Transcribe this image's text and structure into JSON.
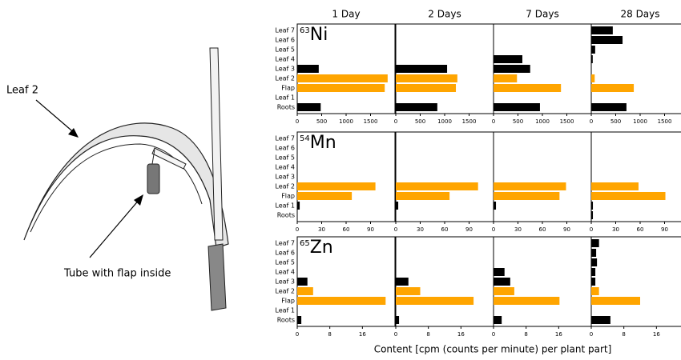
{
  "diagram": {
    "labels": [
      "Leaf 2",
      "Tube with flap inside"
    ]
  },
  "xlabel": "Content [cpm (counts per minute) per plant part]",
  "chart_data": [
    {
      "type": "bar",
      "title": "1 Day",
      "isotope": "63",
      "element": "Ni",
      "categories": [
        "Leaf 7",
        "Leaf 6",
        "Leaf 5",
        "Leaf 4",
        "Leaf 3",
        "Leaf 2",
        "Flap",
        "Leaf 1",
        "Roots"
      ],
      "values": [
        0,
        0,
        0,
        0,
        440,
        1850,
        1790,
        0,
        480
      ],
      "colors": [
        "#000000",
        "#000000",
        "#000000",
        "#000000",
        "#000000",
        "#ffa500",
        "#ffa500",
        "#000000",
        "#000000"
      ],
      "xlim": [
        0,
        2000
      ],
      "xticks": [
        0,
        500,
        1000,
        1500
      ]
    },
    {
      "type": "bar",
      "title": "2 Days",
      "values": [
        0,
        0,
        0,
        0,
        1050,
        1260,
        1230,
        0,
        850
      ],
      "colors": [
        "#000000",
        "#000000",
        "#000000",
        "#000000",
        "#000000",
        "#ffa500",
        "#ffa500",
        "#000000",
        "#000000"
      ],
      "xlim": [
        0,
        2000
      ],
      "xticks": [
        0,
        500,
        1000,
        1500
      ]
    },
    {
      "type": "bar",
      "title": "7 Days",
      "values": [
        0,
        0,
        0,
        590,
        750,
        480,
        1380,
        0,
        950
      ],
      "colors": [
        "#000000",
        "#000000",
        "#000000",
        "#000000",
        "#000000",
        "#ffa500",
        "#ffa500",
        "#000000",
        "#000000"
      ],
      "xlim": [
        0,
        2000
      ],
      "xticks": [
        0,
        500,
        1000,
        1500
      ]
    },
    {
      "type": "bar",
      "title": "28 Days",
      "values": [
        440,
        640,
        80,
        30,
        0,
        70,
        870,
        0,
        720
      ],
      "colors": [
        "#000000",
        "#000000",
        "#000000",
        "#000000",
        "#000000",
        "#ffa500",
        "#ffa500",
        "#000000",
        "#000000"
      ],
      "xlim": [
        0,
        2000
      ],
      "xticks": [
        0,
        500,
        1000,
        1500
      ]
    },
    {
      "type": "bar",
      "isotope": "54",
      "element": "Mn",
      "categories": [
        "Leaf 7",
        "Leaf 6",
        "Leaf 5",
        "Leaf 4",
        "Leaf 3",
        "Leaf 2",
        "Flap",
        "Leaf 1",
        "Roots"
      ],
      "values": [
        0,
        0,
        0,
        0,
        0,
        96,
        67,
        3,
        0
      ],
      "colors": [
        "#000000",
        "#000000",
        "#000000",
        "#000000",
        "#000000",
        "#ffa500",
        "#ffa500",
        "#000000",
        "#000000"
      ],
      "xlim": [
        0,
        120
      ],
      "xticks": [
        0,
        30,
        60,
        90
      ]
    },
    {
      "type": "bar",
      "values": [
        0,
        0,
        0,
        0,
        0,
        101,
        66,
        3,
        0
      ],
      "colors": [
        "#000000",
        "#000000",
        "#000000",
        "#000000",
        "#000000",
        "#ffa500",
        "#ffa500",
        "#000000",
        "#000000"
      ],
      "xlim": [
        0,
        120
      ],
      "xticks": [
        0,
        30,
        60,
        90
      ]
    },
    {
      "type": "bar",
      "values": [
        0,
        0,
        0,
        0,
        0,
        89,
        81,
        3,
        0
      ],
      "colors": [
        "#000000",
        "#000000",
        "#000000",
        "#000000",
        "#000000",
        "#ffa500",
        "#ffa500",
        "#000000",
        "#000000"
      ],
      "xlim": [
        0,
        120
      ],
      "xticks": [
        0,
        30,
        60,
        90
      ]
    },
    {
      "type": "bar",
      "values": [
        0,
        0,
        0,
        0,
        0,
        58,
        91,
        2,
        2
      ],
      "colors": [
        "#000000",
        "#000000",
        "#000000",
        "#000000",
        "#000000",
        "#ffa500",
        "#ffa500",
        "#000000",
        "#000000"
      ],
      "xlim": [
        0,
        120
      ],
      "xticks": [
        0,
        30,
        60,
        90
      ]
    },
    {
      "type": "bar",
      "isotope": "65",
      "element": "Zn",
      "categories": [
        "Leaf 7",
        "Leaf 6",
        "Leaf 5",
        "Leaf 4",
        "Leaf 3",
        "Leaf 2",
        "Flap",
        "Leaf 1",
        "Roots"
      ],
      "values": [
        0,
        0,
        0,
        0,
        2.5,
        3.9,
        21.7,
        0,
        1
      ],
      "colors": [
        "#000000",
        "#000000",
        "#000000",
        "#000000",
        "#000000",
        "#ffa500",
        "#ffa500",
        "#000000",
        "#000000"
      ],
      "xlim": [
        0,
        24
      ],
      "xticks": [
        0,
        8,
        16
      ]
    },
    {
      "type": "bar",
      "values": [
        0,
        0,
        0,
        0,
        3.1,
        6,
        19.1,
        0,
        0.8
      ],
      "colors": [
        "#000000",
        "#000000",
        "#000000",
        "#000000",
        "#000000",
        "#ffa500",
        "#ffa500",
        "#000000",
        "#000000"
      ],
      "xlim": [
        0,
        24
      ],
      "xticks": [
        0,
        8,
        16
      ]
    },
    {
      "type": "bar",
      "values": [
        0,
        0,
        0,
        2.7,
        4.1,
        5.1,
        16.2,
        0,
        2
      ],
      "colors": [
        "#000000",
        "#000000",
        "#000000",
        "#000000",
        "#000000",
        "#ffa500",
        "#ffa500",
        "#000000",
        "#000000"
      ],
      "xlim": [
        0,
        24
      ],
      "xticks": [
        0,
        8,
        16
      ]
    },
    {
      "type": "bar",
      "values": [
        1.9,
        1.2,
        1.4,
        1,
        1,
        1.9,
        12,
        0,
        4.7
      ],
      "colors": [
        "#000000",
        "#000000",
        "#000000",
        "#000000",
        "#000000",
        "#ffa500",
        "#ffa500",
        "#000000",
        "#000000"
      ],
      "xlim": [
        0,
        24
      ],
      "xticks": [
        0,
        8,
        16
      ]
    }
  ]
}
